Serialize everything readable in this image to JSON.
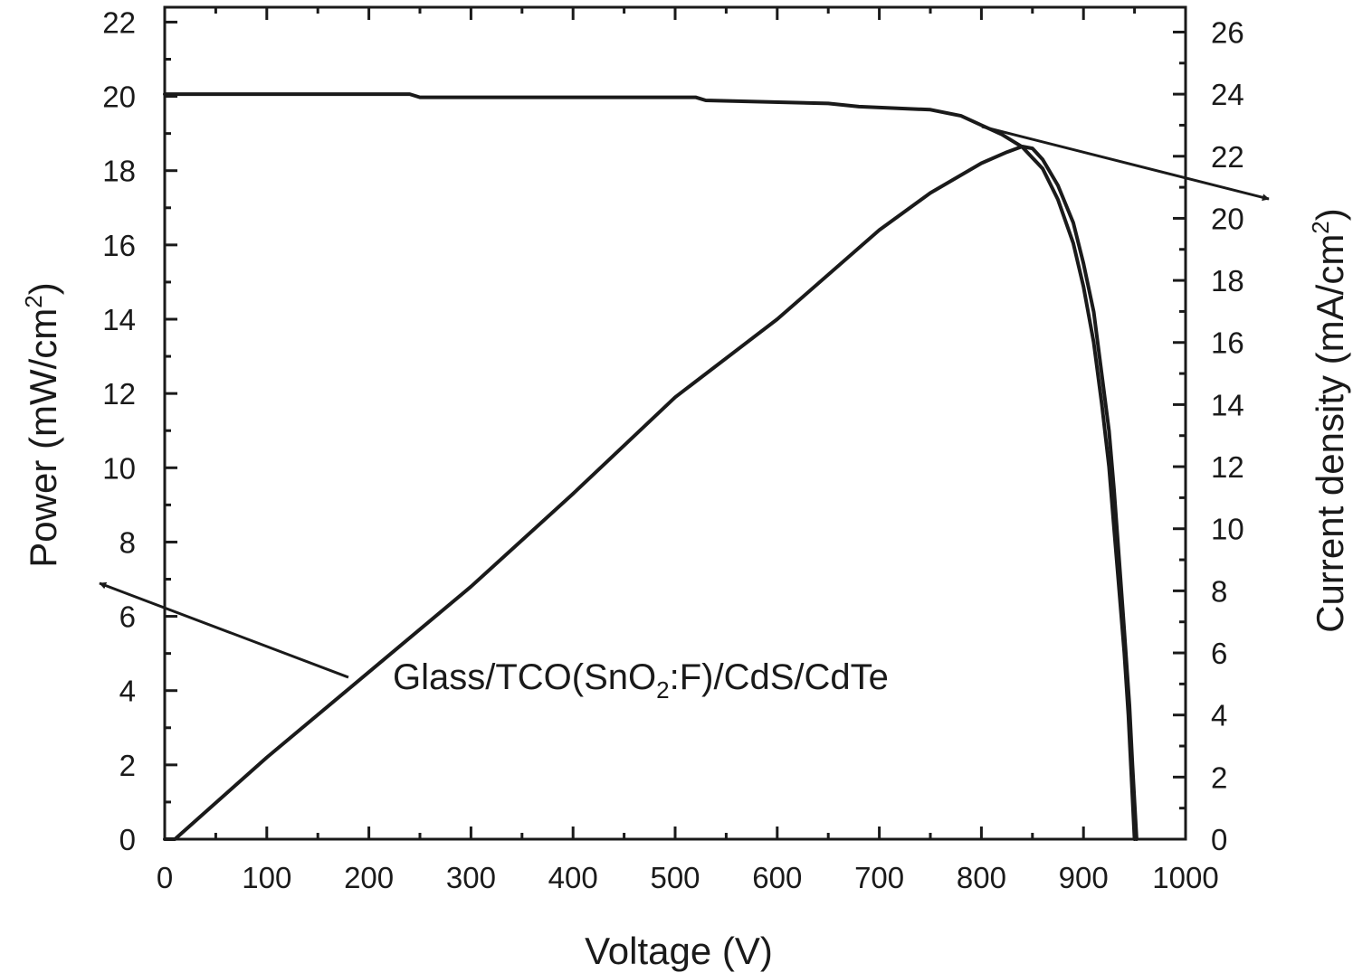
{
  "chart_data": {
    "type": "line",
    "xlabel": "Voltage (V)",
    "ylabel_left": {
      "text": "Power (mW/cm",
      "sup": "2",
      "close": ")"
    },
    "ylabel_right": {
      "text": "Current density (mA/cm",
      "sup": "2",
      "close": ")"
    },
    "xlim": [
      0,
      1000
    ],
    "ylim_left": [
      0,
      22.4
    ],
    "ylim_right": [
      0,
      26.8
    ],
    "x_ticks": [
      0,
      100,
      200,
      300,
      400,
      500,
      600,
      700,
      800,
      900,
      1000
    ],
    "y_ticks_left": [
      0,
      2,
      4,
      6,
      8,
      10,
      12,
      14,
      16,
      18,
      20,
      22
    ],
    "y_ticks_right": [
      0,
      2,
      4,
      6,
      8,
      10,
      12,
      14,
      16,
      18,
      20,
      22,
      24,
      26
    ],
    "annotation": {
      "pre": "Glass/TCO(SnO",
      "sub": "2",
      "post": ":F)/CdS/CdTe"
    },
    "grid": false,
    "legend": "none",
    "series": [
      {
        "axis": "right",
        "points": [
          [
            0,
            24.0
          ],
          [
            100,
            24.0
          ],
          [
            200,
            24.0
          ],
          [
            240,
            24.0
          ],
          [
            250,
            23.9
          ],
          [
            400,
            23.9
          ],
          [
            520,
            23.9
          ],
          [
            530,
            23.8
          ],
          [
            650,
            23.7
          ],
          [
            680,
            23.6
          ],
          [
            750,
            23.5
          ],
          [
            780,
            23.3
          ],
          [
            800,
            23.0
          ],
          [
            820,
            22.7
          ],
          [
            840,
            22.3
          ],
          [
            860,
            21.6
          ],
          [
            875,
            20.6
          ],
          [
            890,
            19.2
          ],
          [
            900,
            17.8
          ],
          [
            910,
            16.0
          ],
          [
            918,
            14.0
          ],
          [
            925,
            12.0
          ],
          [
            930,
            10.0
          ],
          [
            935,
            8.0
          ],
          [
            940,
            6.0
          ],
          [
            944,
            4.0
          ],
          [
            947,
            2.0
          ],
          [
            950,
            0.0
          ]
        ]
      },
      {
        "axis": "left",
        "points": [
          [
            0,
            0.0
          ],
          [
            10,
            0.0
          ],
          [
            100,
            2.2
          ],
          [
            200,
            4.5
          ],
          [
            300,
            6.8
          ],
          [
            400,
            9.3
          ],
          [
            500,
            11.9
          ],
          [
            600,
            14.0
          ],
          [
            700,
            16.4
          ],
          [
            750,
            17.4
          ],
          [
            800,
            18.2
          ],
          [
            825,
            18.5
          ],
          [
            840,
            18.65
          ],
          [
            850,
            18.6
          ],
          [
            860,
            18.3
          ],
          [
            875,
            17.6
          ],
          [
            890,
            16.6
          ],
          [
            900,
            15.5
          ],
          [
            910,
            14.2
          ],
          [
            918,
            12.5
          ],
          [
            925,
            11.0
          ],
          [
            930,
            9.4
          ],
          [
            935,
            7.5
          ],
          [
            940,
            5.6
          ],
          [
            945,
            3.6
          ],
          [
            948,
            2.0
          ],
          [
            952,
            0.0
          ]
        ]
      }
    ]
  }
}
